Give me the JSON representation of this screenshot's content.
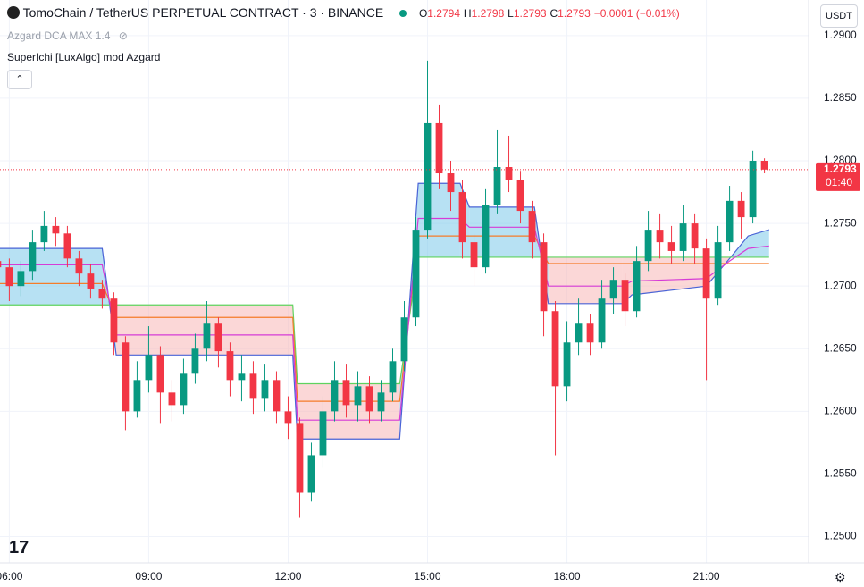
{
  "header": {
    "symbol": "TomoChain / TetherUS PERPETUAL CONTRACT · 3 · BINANCE",
    "o_label": "O",
    "o": "1.2794",
    "h_label": "H",
    "h": "1.2798",
    "l_label": "L",
    "l": "1.2793",
    "c_label": "C",
    "c": "1.2793",
    "change": "−0.0001 (−0.01%)",
    "indicator1": "Azgard DCA MAX 1.4",
    "indicator2": "SuperIchi [LuxAlgo] mod Azgard",
    "currency": "USDT"
  },
  "chart_data": {
    "type": "candlestick",
    "x": [
      5.75,
      6,
      6.25,
      6.5,
      6.75,
      7,
      7.25,
      7.5,
      7.75,
      8,
      8.25,
      8.5,
      8.75,
      9,
      9.25,
      9.5,
      9.75,
      10,
      10.25,
      10.5,
      10.75,
      11,
      11.25,
      11.5,
      11.75,
      12,
      12.25,
      12.5,
      12.75,
      13,
      13.25,
      13.5,
      13.75,
      14,
      14.25,
      14.5,
      14.75,
      15,
      15.25,
      15.5,
      15.75,
      16,
      16.25,
      16.5,
      16.75,
      17,
      17.25,
      17.5,
      17.75,
      18,
      18.25,
      18.5,
      18.75,
      19,
      19.25,
      19.5,
      19.75,
      20,
      20.25,
      20.5,
      20.75,
      21,
      21.25,
      21.5,
      21.75,
      22,
      22.25
    ],
    "open": [
      1.272,
      1.2715,
      1.27,
      1.2712,
      1.2735,
      1.2748,
      1.2742,
      1.2722,
      1.271,
      1.2698,
      1.269,
      1.2655,
      1.26,
      1.2625,
      1.2645,
      1.2615,
      1.2605,
      1.263,
      1.265,
      1.267,
      1.2648,
      1.2625,
      1.263,
      1.261,
      1.2625,
      1.26,
      1.259,
      1.2535,
      1.2565,
      1.26,
      1.2625,
      1.2605,
      1.262,
      1.26,
      1.2615,
      1.264,
      1.2675,
      1.2745,
      1.283,
      1.279,
      1.2775,
      1.2735,
      1.2715,
      1.2765,
      1.2795,
      1.2785,
      1.276,
      1.2735,
      1.268,
      1.262,
      1.2655,
      1.267,
      1.2655,
      1.269,
      1.2705,
      1.268,
      1.272,
      1.2745,
      1.2735,
      1.2728,
      1.275,
      1.273,
      1.269,
      1.2735,
      1.2768,
      1.2755,
      1.28
    ],
    "high": [
      1.2728,
      1.2722,
      1.272,
      1.2745,
      1.276,
      1.2755,
      1.2748,
      1.2728,
      1.2718,
      1.2705,
      1.2695,
      1.266,
      1.264,
      1.2668,
      1.2652,
      1.2625,
      1.2642,
      1.2662,
      1.2688,
      1.2675,
      1.2655,
      1.2645,
      1.264,
      1.2638,
      1.2632,
      1.2612,
      1.2595,
      1.2575,
      1.2612,
      1.264,
      1.2638,
      1.2632,
      1.2628,
      1.2625,
      1.265,
      1.2688,
      1.2755,
      1.288,
      1.2845,
      1.28,
      1.2785,
      1.2742,
      1.2778,
      1.2825,
      1.282,
      1.2792,
      1.2768,
      1.2742,
      1.2688,
      1.2672,
      1.269,
      1.2678,
      1.2705,
      1.2715,
      1.271,
      1.2732,
      1.276,
      1.2758,
      1.2748,
      1.2765,
      1.2758,
      1.2738,
      1.2748,
      1.278,
      1.2775,
      1.2808,
      1.2802
    ],
    "low": [
      1.2705,
      1.2688,
      1.2692,
      1.2705,
      1.2728,
      1.2732,
      1.2715,
      1.27,
      1.269,
      1.2682,
      1.2645,
      1.2585,
      1.2595,
      1.2615,
      1.259,
      1.2592,
      1.2598,
      1.2622,
      1.264,
      1.2635,
      1.2612,
      1.2608,
      1.2598,
      1.26,
      1.259,
      1.2578,
      1.2515,
      1.2528,
      1.2555,
      1.2592,
      1.2595,
      1.2592,
      1.259,
      1.2592,
      1.2608,
      1.2632,
      1.2668,
      1.2738,
      1.2778,
      1.276,
      1.2722,
      1.27,
      1.271,
      1.2758,
      1.2775,
      1.275,
      1.2722,
      1.266,
      1.2565,
      1.2608,
      1.2645,
      1.2645,
      1.265,
      1.2678,
      1.2668,
      1.2675,
      1.2712,
      1.2722,
      1.2718,
      1.272,
      1.2718,
      1.2625,
      1.2685,
      1.2728,
      1.2738,
      1.275,
      1.279
    ],
    "close": [
      1.2715,
      1.27,
      1.2712,
      1.2735,
      1.2748,
      1.2742,
      1.2722,
      1.271,
      1.2698,
      1.269,
      1.2655,
      1.26,
      1.2625,
      1.2645,
      1.2615,
      1.2605,
      1.263,
      1.265,
      1.267,
      1.2648,
      1.2625,
      1.263,
      1.261,
      1.2625,
      1.26,
      1.259,
      1.2535,
      1.2565,
      1.26,
      1.2625,
      1.2605,
      1.262,
      1.26,
      1.2615,
      1.264,
      1.2675,
      1.2745,
      1.283,
      1.279,
      1.2775,
      1.2735,
      1.2715,
      1.2765,
      1.2795,
      1.2785,
      1.276,
      1.2735,
      1.268,
      1.262,
      1.2655,
      1.267,
      1.2655,
      1.269,
      1.2705,
      1.268,
      1.272,
      1.2745,
      1.2735,
      1.2728,
      1.275,
      1.273,
      1.269,
      1.2735,
      1.2768,
      1.2755,
      1.28,
      1.2793
    ],
    "up_color": "#089981",
    "down_color": "#f23645",
    "line_x": [
      5.7,
      8.0,
      8.3,
      12.1,
      12.2,
      14.4,
      14.8,
      15.7,
      15.9,
      17.3,
      17.6,
      19.2,
      19.4,
      21.0,
      21.5,
      21.9,
      22.35
    ],
    "lines": [
      {
        "color": "#4a63d6",
        "values": [
          1.273,
          1.273,
          1.2645,
          1.2645,
          1.2578,
          1.2578,
          1.2782,
          1.2782,
          1.2763,
          1.2763,
          1.2686,
          1.2686,
          1.2693,
          1.27,
          1.2722,
          1.274,
          1.2745
        ]
      },
      {
        "color": "#5fd35f",
        "values": [
          1.2685,
          1.2685,
          1.2685,
          1.2685,
          1.2622,
          1.2622,
          1.2723,
          1.2723,
          1.2723,
          1.2723,
          1.2723,
          1.2723,
          1.2723,
          1.2723,
          1.2723,
          1.2723,
          1.2723
        ]
      },
      {
        "color": "#f57c2a",
        "values": [
          1.2702,
          1.2702,
          1.2675,
          1.2675,
          1.2608,
          1.2608,
          1.274,
          1.274,
          1.274,
          1.274,
          1.2718,
          1.2718,
          1.2718,
          1.2718,
          1.2718,
          1.2718,
          1.2718
        ]
      },
      {
        "color": "#d63bd6",
        "values": [
          1.2717,
          1.2717,
          1.2661,
          1.2661,
          1.2593,
          1.2593,
          1.2754,
          1.2754,
          1.2747,
          1.2747,
          1.27,
          1.27,
          1.2704,
          1.2706,
          1.272,
          1.273,
          1.2732
        ]
      }
    ],
    "cloud_up_fill": "#7cc8ea",
    "cloud_down_fill": "#f8b7b7",
    "last_price": 1.2793,
    "last_price_label": "1.2793",
    "countdown": "01:40",
    "ylim": [
      1.2479,
      1.2907
    ],
    "yticks": [
      {
        "value": 1.25,
        "label": "1.2500"
      },
      {
        "value": 1.255,
        "label": "1.2550"
      },
      {
        "value": 1.26,
        "label": "1.2600"
      },
      {
        "value": 1.265,
        "label": "1.2650"
      },
      {
        "value": 1.27,
        "label": "1.2700"
      },
      {
        "value": 1.275,
        "label": "1.2750"
      },
      {
        "value": 1.28,
        "label": "1.2800"
      },
      {
        "value": 1.285,
        "label": "1.2850"
      },
      {
        "value": 1.29,
        "label": "1.2900"
      }
    ],
    "xlim": [
      5.8,
      23.2
    ],
    "xticks": [
      {
        "value": 6,
        "label": "06:00"
      },
      {
        "value": 9,
        "label": "09:00"
      },
      {
        "value": 12,
        "label": "12:00"
      },
      {
        "value": 15,
        "label": "15:00"
      },
      {
        "value": 18,
        "label": "18:00"
      },
      {
        "value": 21,
        "label": "21:00"
      }
    ],
    "grid": true
  }
}
